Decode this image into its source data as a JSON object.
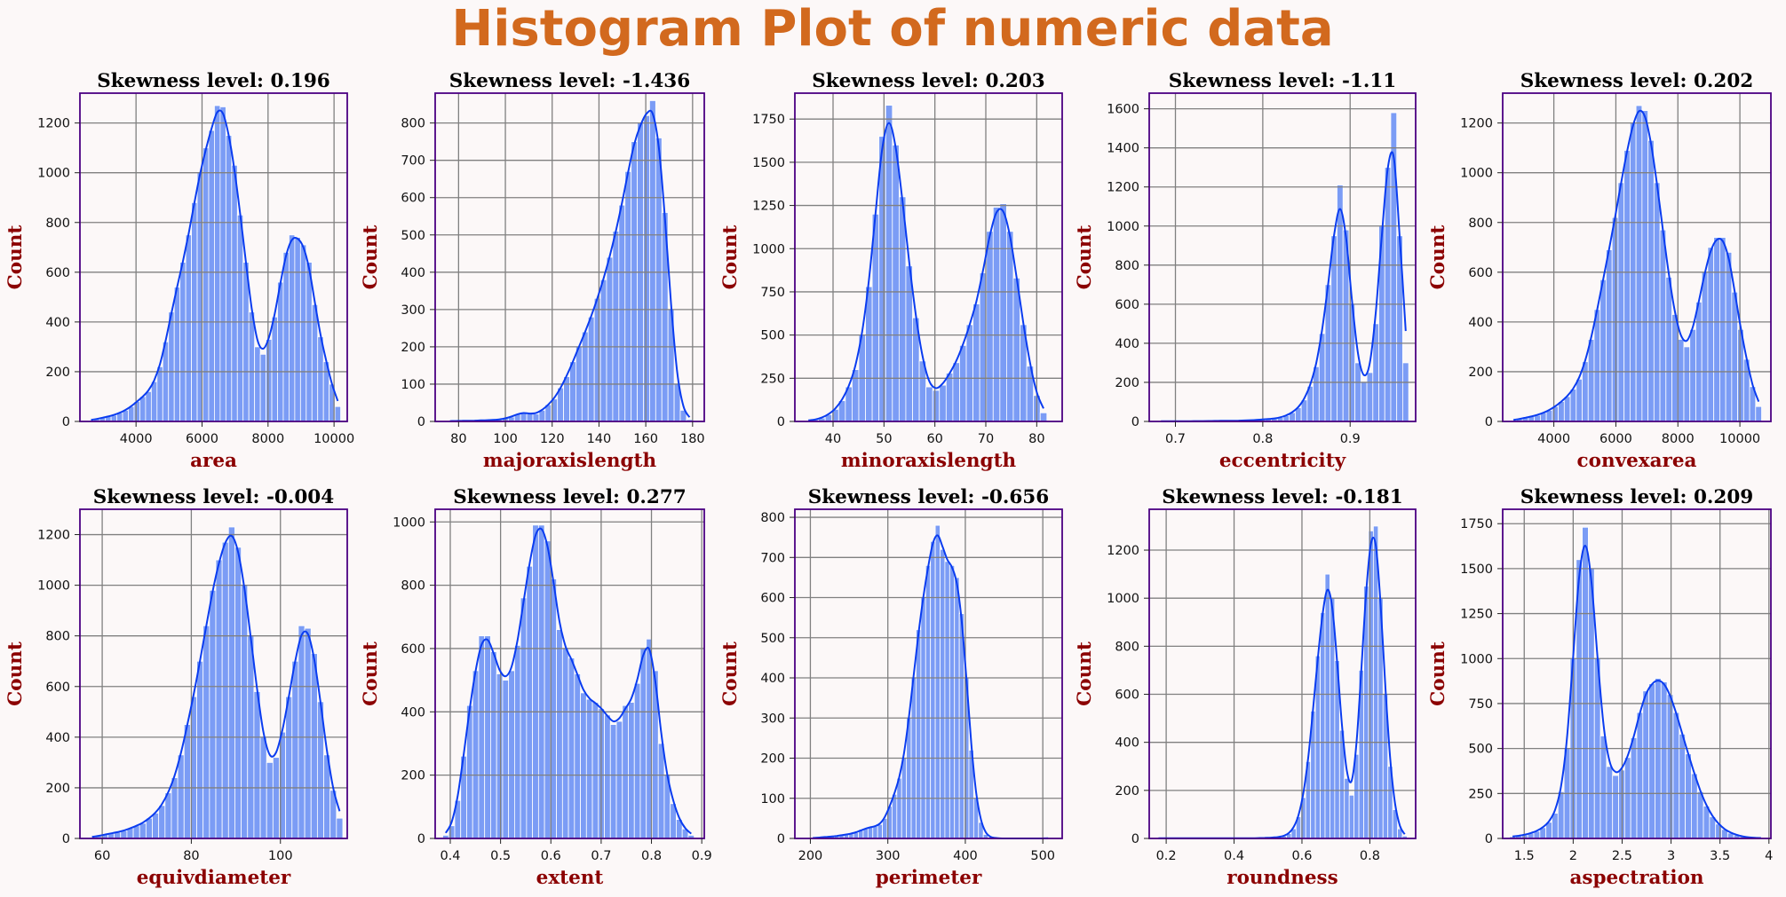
{
  "figure": {
    "title": "Histogram Plot of numeric data",
    "colors": {
      "background": "#fcf8f8",
      "title": "#d2691e",
      "axis_label": "#8b0000",
      "frame": "#4b0082",
      "grid": "#808080",
      "bar": "#7b9cf5",
      "kde": "#0a3cf0"
    }
  },
  "chart_data": [
    {
      "type": "bar",
      "title": "Skewness level: 0.196",
      "xlabel": "area",
      "ylabel": "Count",
      "xlim": [
        2300,
        10400
      ],
      "ylim": [
        0,
        1320
      ],
      "xticks": [
        4000,
        6000,
        8000,
        10000
      ],
      "yticks": [
        0,
        200,
        400,
        600,
        800,
        1000,
        1200
      ],
      "bins": {
        "start": 2550,
        "end": 10200,
        "counts": [
          5,
          10,
          15,
          20,
          25,
          35,
          45,
          60,
          80,
          100,
          120,
          160,
          220,
          320,
          440,
          540,
          640,
          750,
          880,
          1000,
          1100,
          1170,
          1270,
          1265,
          1150,
          1030,
          830,
          640,
          440,
          300,
          270,
          330,
          420,
          560,
          680,
          750,
          740,
          710,
          640,
          470,
          340,
          240,
          150,
          60
        ]
      }
    },
    {
      "type": "bar",
      "title": "Skewness level: -1.436",
      "xlabel": "majoraxislength",
      "ylabel": "Count",
      "xlim": [
        70,
        185
      ],
      "ylim": [
        0,
        880
      ],
      "xticks": [
        80,
        100,
        120,
        140,
        160,
        180
      ],
      "yticks": [
        0,
        100,
        200,
        300,
        400,
        500,
        600,
        700,
        800
      ],
      "bins": {
        "start": 75,
        "end": 180,
        "counts": [
          1,
          1,
          2,
          2,
          2,
          3,
          3,
          4,
          5,
          8,
          12,
          20,
          25,
          20,
          20,
          30,
          45,
          60,
          90,
          120,
          160,
          200,
          240,
          280,
          330,
          380,
          440,
          510,
          580,
          670,
          750,
          800,
          820,
          860,
          760,
          560,
          300,
          100,
          30,
          5
        ]
      }
    },
    {
      "type": "bar",
      "title": "Skewness level: 0.203",
      "xlabel": "minoraxislength",
      "ylabel": "Count",
      "xlim": [
        32.5,
        85
      ],
      "ylim": [
        0,
        1900
      ],
      "xticks": [
        40,
        50,
        60,
        70,
        80
      ],
      "yticks": [
        0,
        250,
        500,
        750,
        1000,
        1250,
        1500,
        1750
      ],
      "bins": {
        "start": 34.5,
        "end": 82,
        "counts": [
          5,
          10,
          20,
          40,
          70,
          120,
          200,
          300,
          500,
          780,
          1200,
          1650,
          1830,
          1600,
          1300,
          900,
          600,
          350,
          200,
          180,
          210,
          280,
          340,
          440,
          560,
          680,
          860,
          1100,
          1240,
          1260,
          1100,
          830,
          560,
          320,
          150,
          50
        ]
      }
    },
    {
      "type": "bar",
      "title": "Skewness level: -1.11",
      "xlabel": "eccentricity",
      "ylabel": "Count",
      "xlim": [
        0.67,
        0.975
      ],
      "ylim": [
        0,
        1680
      ],
      "xticks": [
        0.7,
        0.8,
        0.9
      ],
      "yticks": [
        0,
        200,
        400,
        600,
        800,
        1000,
        1200,
        1400,
        1600
      ],
      "bins": {
        "start": 0.68,
        "end": 0.967,
        "counts": [
          1,
          1,
          1,
          1,
          1,
          1,
          2,
          2,
          2,
          3,
          3,
          3,
          4,
          4,
          5,
          6,
          8,
          10,
          12,
          15,
          20,
          30,
          45,
          70,
          110,
          180,
          280,
          450,
          700,
          950,
          1210,
          980,
          600,
          300,
          200,
          250,
          500,
          1000,
          1300,
          1580,
          950,
          300
        ]
      }
    },
    {
      "type": "bar",
      "title": "Skewness level: 0.202",
      "xlabel": "convexarea",
      "ylabel": "Count",
      "xlim": [
        2350,
        11000
      ],
      "ylim": [
        0,
        1320
      ],
      "xticks": [
        4000,
        6000,
        8000,
        10000
      ],
      "yticks": [
        0,
        200,
        400,
        600,
        800,
        1000,
        1200
      ],
      "bins": {
        "start": 2600,
        "end": 10700,
        "counts": [
          5,
          10,
          15,
          20,
          25,
          35,
          45,
          60,
          80,
          100,
          130,
          170,
          240,
          330,
          450,
          570,
          690,
          820,
          960,
          1090,
          1200,
          1270,
          1250,
          1130,
          960,
          770,
          580,
          430,
          330,
          300,
          370,
          480,
          600,
          700,
          740,
          740,
          680,
          520,
          370,
          250,
          140,
          60
        ]
      }
    },
    {
      "type": "bar",
      "title": "Skewness level: -0.004",
      "xlabel": "equivdiameter",
      "ylabel": "Count",
      "xlim": [
        55,
        115
      ],
      "ylim": [
        0,
        1300
      ],
      "xticks": [
        60,
        80,
        100
      ],
      "yticks": [
        0,
        200,
        400,
        600,
        800,
        1000,
        1200
      ],
      "bins": {
        "start": 57,
        "end": 114,
        "counts": [
          5,
          10,
          15,
          20,
          25,
          30,
          40,
          50,
          60,
          80,
          100,
          130,
          180,
          240,
          330,
          450,
          560,
          700,
          840,
          980,
          1100,
          1170,
          1230,
          1150,
          1000,
          800,
          580,
          400,
          300,
          320,
          420,
          560,
          700,
          840,
          830,
          730,
          540,
          330,
          190,
          80
        ]
      }
    },
    {
      "type": "bar",
      "title": "Skewness level: 0.277",
      "xlabel": "extent",
      "ylabel": "Count",
      "xlim": [
        0.37,
        0.905
      ],
      "ylim": [
        0,
        1040
      ],
      "xticks": [
        0.4,
        0.5,
        0.6,
        0.7,
        0.8,
        0.9
      ],
      "yticks": [
        0,
        200,
        400,
        600,
        800,
        1000
      ],
      "bins": {
        "start": 0.385,
        "end": 0.885,
        "counts": [
          10,
          40,
          120,
          260,
          420,
          530,
          640,
          640,
          590,
          520,
          500,
          530,
          610,
          760,
          860,
          990,
          990,
          940,
          820,
          660,
          600,
          570,
          520,
          460,
          440,
          430,
          410,
          390,
          360,
          370,
          420,
          430,
          490,
          600,
          630,
          530,
          300,
          200,
          110,
          60,
          30,
          10
        ]
      }
    },
    {
      "type": "bar",
      "title": "Skewness level: -0.656",
      "xlabel": "perimeter",
      "ylabel": "Count",
      "xlim": [
        180,
        525
      ],
      "ylim": [
        0,
        820
      ],
      "xticks": [
        200,
        300,
        400,
        500
      ],
      "yticks": [
        0,
        100,
        200,
        300,
        400,
        500,
        600,
        700,
        800
      ],
      "bins": {
        "start": 200,
        "end": 510,
        "counts": [
          1,
          2,
          3,
          4,
          5,
          6,
          8,
          10,
          12,
          15,
          20,
          25,
          28,
          30,
          35,
          50,
          80,
          110,
          150,
          200,
          300,
          400,
          520,
          600,
          680,
          740,
          780,
          720,
          690,
          680,
          650,
          560,
          400,
          220,
          100,
          40,
          10,
          3,
          1,
          0,
          0,
          0,
          0,
          0,
          0,
          0,
          0,
          0,
          0,
          1
        ]
      }
    },
    {
      "type": "bar",
      "title": "Skewness level: -0.181",
      "xlabel": "roundness",
      "ylabel": "Count",
      "xlim": [
        0.15,
        0.935
      ],
      "ylim": [
        0,
        1370
      ],
      "xticks": [
        0.2,
        0.4,
        0.6,
        0.8
      ],
      "yticks": [
        0,
        200,
        400,
        600,
        800,
        1000,
        1200
      ],
      "bins": {
        "start": 0.17,
        "end": 0.91,
        "counts": [
          1,
          1,
          1,
          1,
          1,
          1,
          1,
          1,
          1,
          1,
          1,
          1,
          1,
          1,
          1,
          1,
          1,
          1,
          1,
          1,
          1,
          2,
          2,
          3,
          4,
          6,
          10,
          20,
          40,
          90,
          170,
          320,
          530,
          760,
          940,
          1100,
          1000,
          740,
          450,
          250,
          180,
          350,
          700,
          1050,
          1280,
          1300,
          1000,
          600,
          300,
          120,
          40,
          10
        ]
      }
    },
    {
      "type": "bar",
      "title": "Skewness level: 0.209",
      "xlabel": "aspectration",
      "ylabel": "Count",
      "xlim": [
        1.28,
        4.02
      ],
      "ylim": [
        0,
        1830
      ],
      "xticks": [
        1.5,
        2.0,
        2.5,
        3.0,
        3.5,
        4.0
      ],
      "yticks": [
        0,
        250,
        500,
        750,
        1000,
        1250,
        1500,
        1750
      ],
      "bins": {
        "start": 1.35,
        "end": 3.95,
        "counts": [
          10,
          15,
          20,
          30,
          40,
          60,
          90,
          140,
          260,
          500,
          1000,
          1550,
          1730,
          1500,
          1000,
          570,
          400,
          350,
          380,
          450,
          560,
          700,
          820,
          860,
          890,
          870,
          800,
          700,
          580,
          470,
          360,
          260,
          180,
          120,
          80,
          50,
          30,
          20,
          10,
          5,
          3,
          2
        ]
      }
    }
  ]
}
